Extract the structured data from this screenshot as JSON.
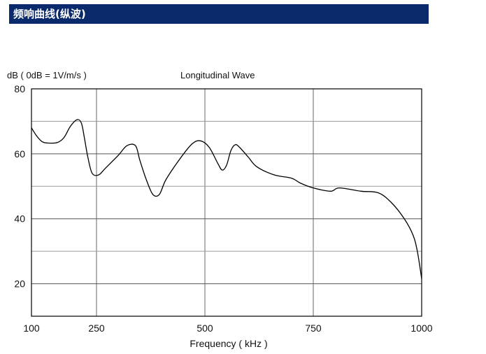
{
  "header": {
    "title": "频响曲线(纵波)"
  },
  "chart_data": {
    "type": "line",
    "title": "Longitudinal Wave",
    "ylabel": "dB ( 0dB = 1V/m/s )",
    "xlabel": "Frequency ( kHz )",
    "xlim": [
      100,
      1000
    ],
    "ylim": [
      10,
      80
    ],
    "x_tick_labels": [
      "100",
      "250",
      "500",
      "750",
      "1000"
    ],
    "y_tick_labels": [
      "80",
      "60",
      "40",
      "20"
    ],
    "grid": true,
    "colors": {
      "line": "#000000",
      "grid": "#9a9a9a",
      "frame": "#000000"
    },
    "series": [
      {
        "x": [
          100,
          112,
          125,
          140,
          160,
          175,
          190,
          205,
          215,
          222,
          230,
          240,
          255,
          270,
          300,
          320,
          340,
          350,
          365,
          380,
          395,
          410,
          440,
          470,
          490,
          510,
          530,
          540,
          550,
          560,
          570,
          580,
          600,
          620,
          660,
          700,
          720,
          750,
          790,
          810,
          860,
          900,
          930,
          960,
          980,
          990,
          1000
        ],
        "y": [
          68,
          65.5,
          63.7,
          63.3,
          63.5,
          65,
          68.5,
          70.5,
          69.5,
          65,
          59,
          54,
          53.5,
          55.5,
          59.5,
          62.5,
          62.5,
          58,
          52,
          47.5,
          47.5,
          52,
          58,
          63,
          64,
          62,
          57,
          55,
          56.5,
          61,
          62.8,
          62,
          59,
          56,
          53.5,
          52.5,
          51,
          49.5,
          48.5,
          49.5,
          48.5,
          48,
          45,
          40,
          35,
          30,
          21.5
        ]
      }
    ]
  }
}
